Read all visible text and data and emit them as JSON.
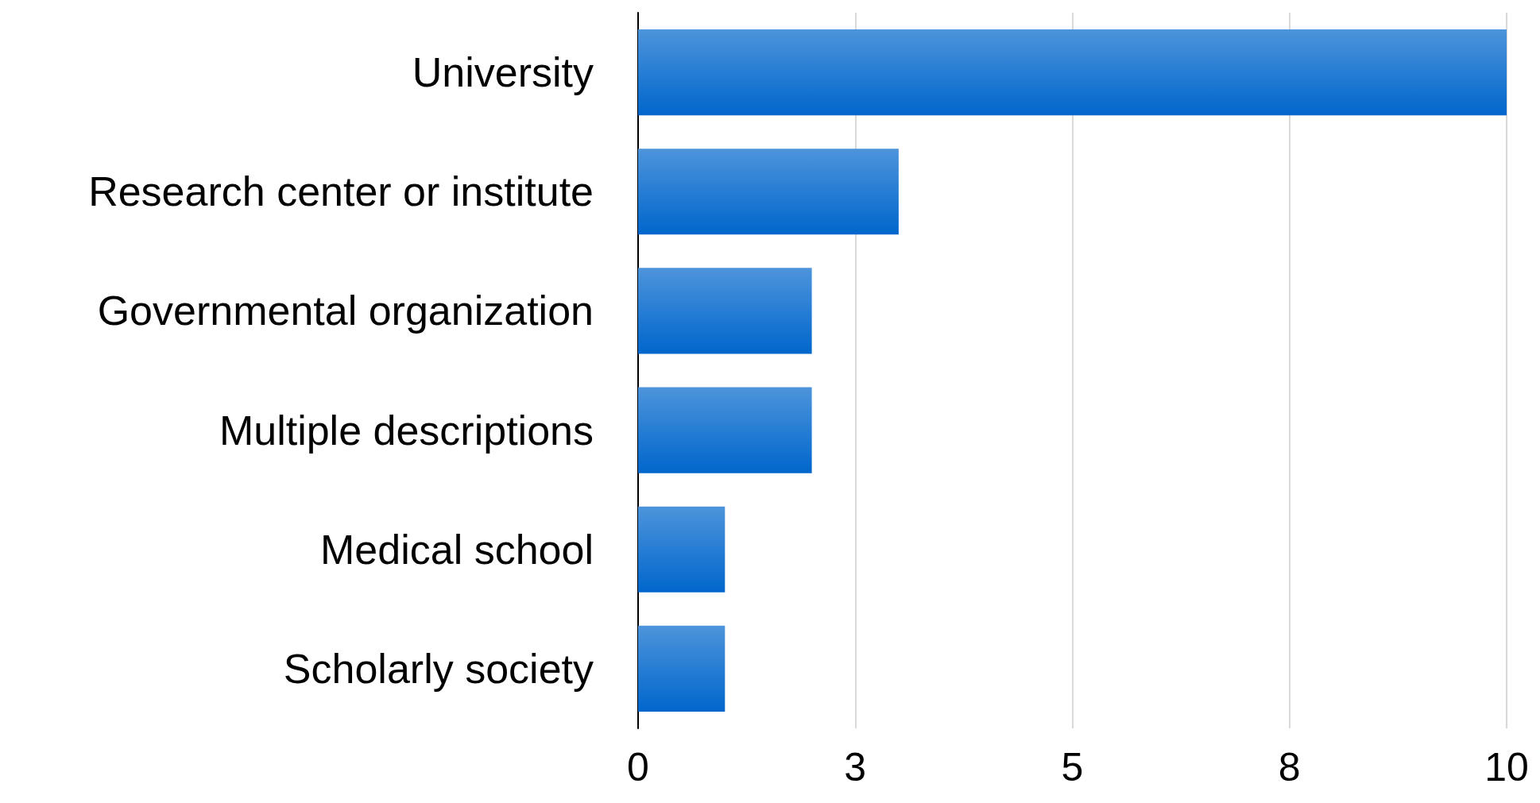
{
  "chart_data": {
    "type": "bar",
    "orientation": "horizontal",
    "categories": [
      "University",
      "Research center or institute",
      "Governmental organization",
      "Multiple descriptions",
      "Medical school",
      "Scholarly society"
    ],
    "values": [
      10,
      3,
      2,
      2,
      1,
      1
    ],
    "color": "#0066cc",
    "xlim": [
      0,
      10
    ],
    "xticks": [
      0,
      {
        "value": 2.5,
        "label": "3"
      },
      5,
      {
        "value": 7.5,
        "label": "8"
      },
      10
    ],
    "grid": "x"
  }
}
